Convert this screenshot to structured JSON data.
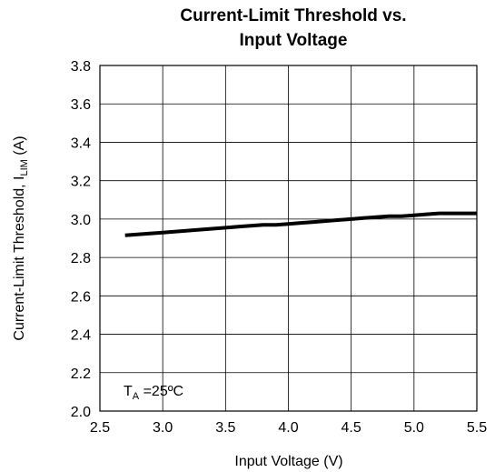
{
  "chart_data": {
    "type": "line",
    "title_line1": "Current-Limit Threshold vs.",
    "title_line2": "Input Voltage",
    "xlabel": "Input Voltage (V)",
    "ylabel": {
      "main": "Current-Limit Threshold, I",
      "subscript": "LIM",
      "suffix": " (A)"
    },
    "xlim": [
      2.5,
      5.5
    ],
    "ylim": [
      2.0,
      3.8
    ],
    "x_ticks": [
      "2.5",
      "3.0",
      "3.5",
      "4.0",
      "4.5",
      "5.0",
      "5.5"
    ],
    "y_ticks": [
      "2.0",
      "2.2",
      "2.4",
      "2.6",
      "2.8",
      "3.0",
      "3.2",
      "3.4",
      "3.6",
      "3.8"
    ],
    "grid": true,
    "annotation": {
      "main": "T",
      "subscript": "A",
      "suffix": " =25ºC"
    },
    "series": [
      {
        "x": [
          2.7,
          3.0,
          3.3,
          3.6,
          3.8,
          3.9,
          4.0,
          4.1,
          4.2,
          4.3,
          4.4,
          4.5,
          4.6,
          4.7,
          4.8,
          4.9,
          5.0,
          5.1,
          5.2,
          5.3,
          5.5
        ],
        "values": [
          2.915,
          2.93,
          2.945,
          2.96,
          2.97,
          2.97,
          2.975,
          2.98,
          2.985,
          2.99,
          2.995,
          3.0,
          3.005,
          3.01,
          3.015,
          3.015,
          3.02,
          3.025,
          3.03,
          3.03,
          3.03
        ]
      }
    ],
    "line_color": "#000000"
  }
}
